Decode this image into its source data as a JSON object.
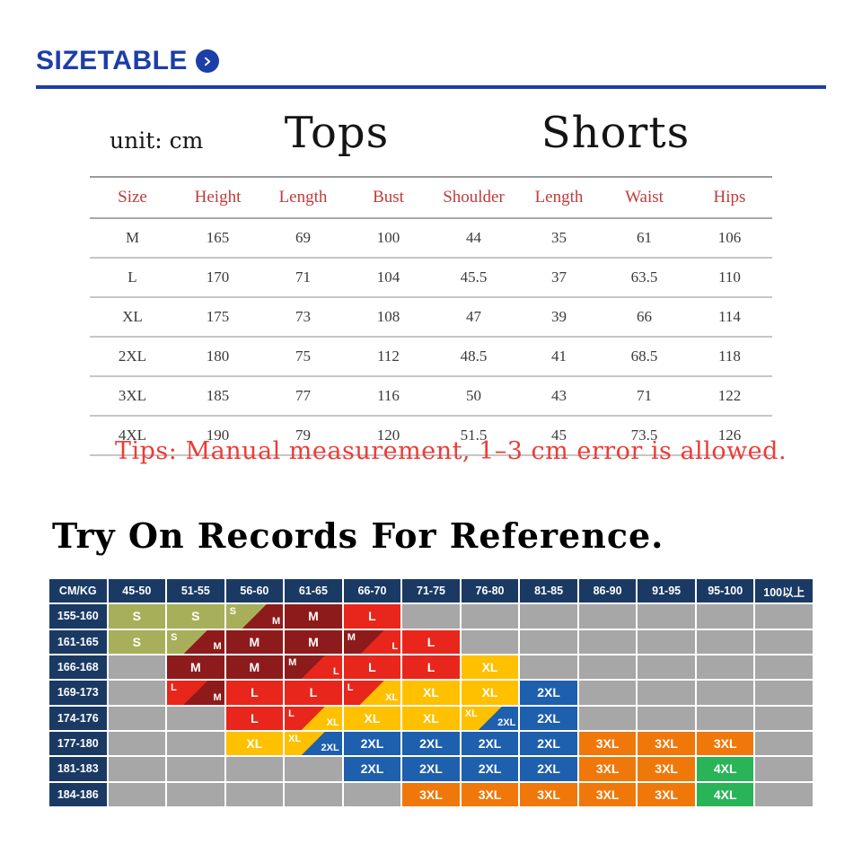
{
  "brand": {
    "title": "SIZETABLE",
    "accent_color": "#1C3EA8"
  },
  "size_table": {
    "unit_label": "unit: cm",
    "group_labels": {
      "tops": "Tops",
      "shorts": "Shorts"
    },
    "columns": [
      "Size",
      "Height",
      "Length",
      "Bust",
      "Shoulder",
      "Length",
      "Waist",
      "Hips"
    ],
    "rows": [
      [
        "M",
        "165",
        "69",
        "100",
        "44",
        "35",
        "61",
        "106"
      ],
      [
        "L",
        "170",
        "71",
        "104",
        "45.5",
        "37",
        "63.5",
        "110"
      ],
      [
        "XL",
        "175",
        "73",
        "108",
        "47",
        "39",
        "66",
        "114"
      ],
      [
        "2XL",
        "180",
        "75",
        "112",
        "48.5",
        "41",
        "68.5",
        "118"
      ],
      [
        "3XL",
        "185",
        "77",
        "116",
        "50",
        "43",
        "71",
        "122"
      ],
      [
        "4XL",
        "190",
        "79",
        "120",
        "51.5",
        "45",
        "73.5",
        "126"
      ]
    ],
    "tips": "Tips: Manual measurement, 1–3 cm error is allowed."
  },
  "try_on": {
    "title": "Try On Records For Reference.",
    "header": [
      "CM/KG",
      "45-50",
      "51-55",
      "56-60",
      "61-65",
      "66-70",
      "71-75",
      "76-80",
      "81-85",
      "86-90",
      "91-95",
      "95-100",
      "100以上"
    ],
    "rows": [
      {
        "label": "155-160",
        "cells": [
          "S",
          "S",
          "S/M",
          "M",
          "L",
          "",
          "",
          "",
          "",
          "",
          "",
          ""
        ]
      },
      {
        "label": "161-165",
        "cells": [
          "S",
          "S/M",
          "M",
          "M",
          "M/L",
          "L",
          "",
          "",
          "",
          "",
          "",
          ""
        ]
      },
      {
        "label": "166-168",
        "cells": [
          "",
          "M",
          "M",
          "M/L",
          "L",
          "L",
          "XL",
          "",
          "",
          "",
          "",
          ""
        ]
      },
      {
        "label": "169-173",
        "cells": [
          "",
          "L/M",
          "L",
          "L",
          "L/XL",
          "XL",
          "XL",
          "2XL",
          "",
          "",
          "",
          ""
        ]
      },
      {
        "label": "174-176",
        "cells": [
          "",
          "",
          "L",
          "L/XL",
          "XL",
          "XL",
          "XL/2XL",
          "2XL",
          "",
          "",
          "",
          ""
        ]
      },
      {
        "label": "177-180",
        "cells": [
          "",
          "",
          "XL",
          "XL/2XL",
          "2XL",
          "2XL",
          "2XL",
          "2XL",
          "3XL",
          "3XL",
          "3XL",
          ""
        ]
      },
      {
        "label": "181-183",
        "cells": [
          "",
          "",
          "",
          "",
          "2XL",
          "2XL",
          "2XL",
          "2XL",
          "3XL",
          "3XL",
          "4XL",
          ""
        ]
      },
      {
        "label": "184-186",
        "cells": [
          "",
          "",
          "",
          "",
          "",
          "3XL",
          "3XL",
          "3XL",
          "3XL",
          "3XL",
          "4XL",
          ""
        ]
      }
    ],
    "size_colors": {
      "S": "#A8AF5A",
      "M": "#8E1B1B",
      "L": "#E8261C",
      "XL": "#FFC000",
      "2XL": "#1E5FAE",
      "3XL": "#F0780A",
      "4XL": "#29B457"
    },
    "empty_color": "#A7A7A7",
    "header_bg": "#1A3A64"
  }
}
